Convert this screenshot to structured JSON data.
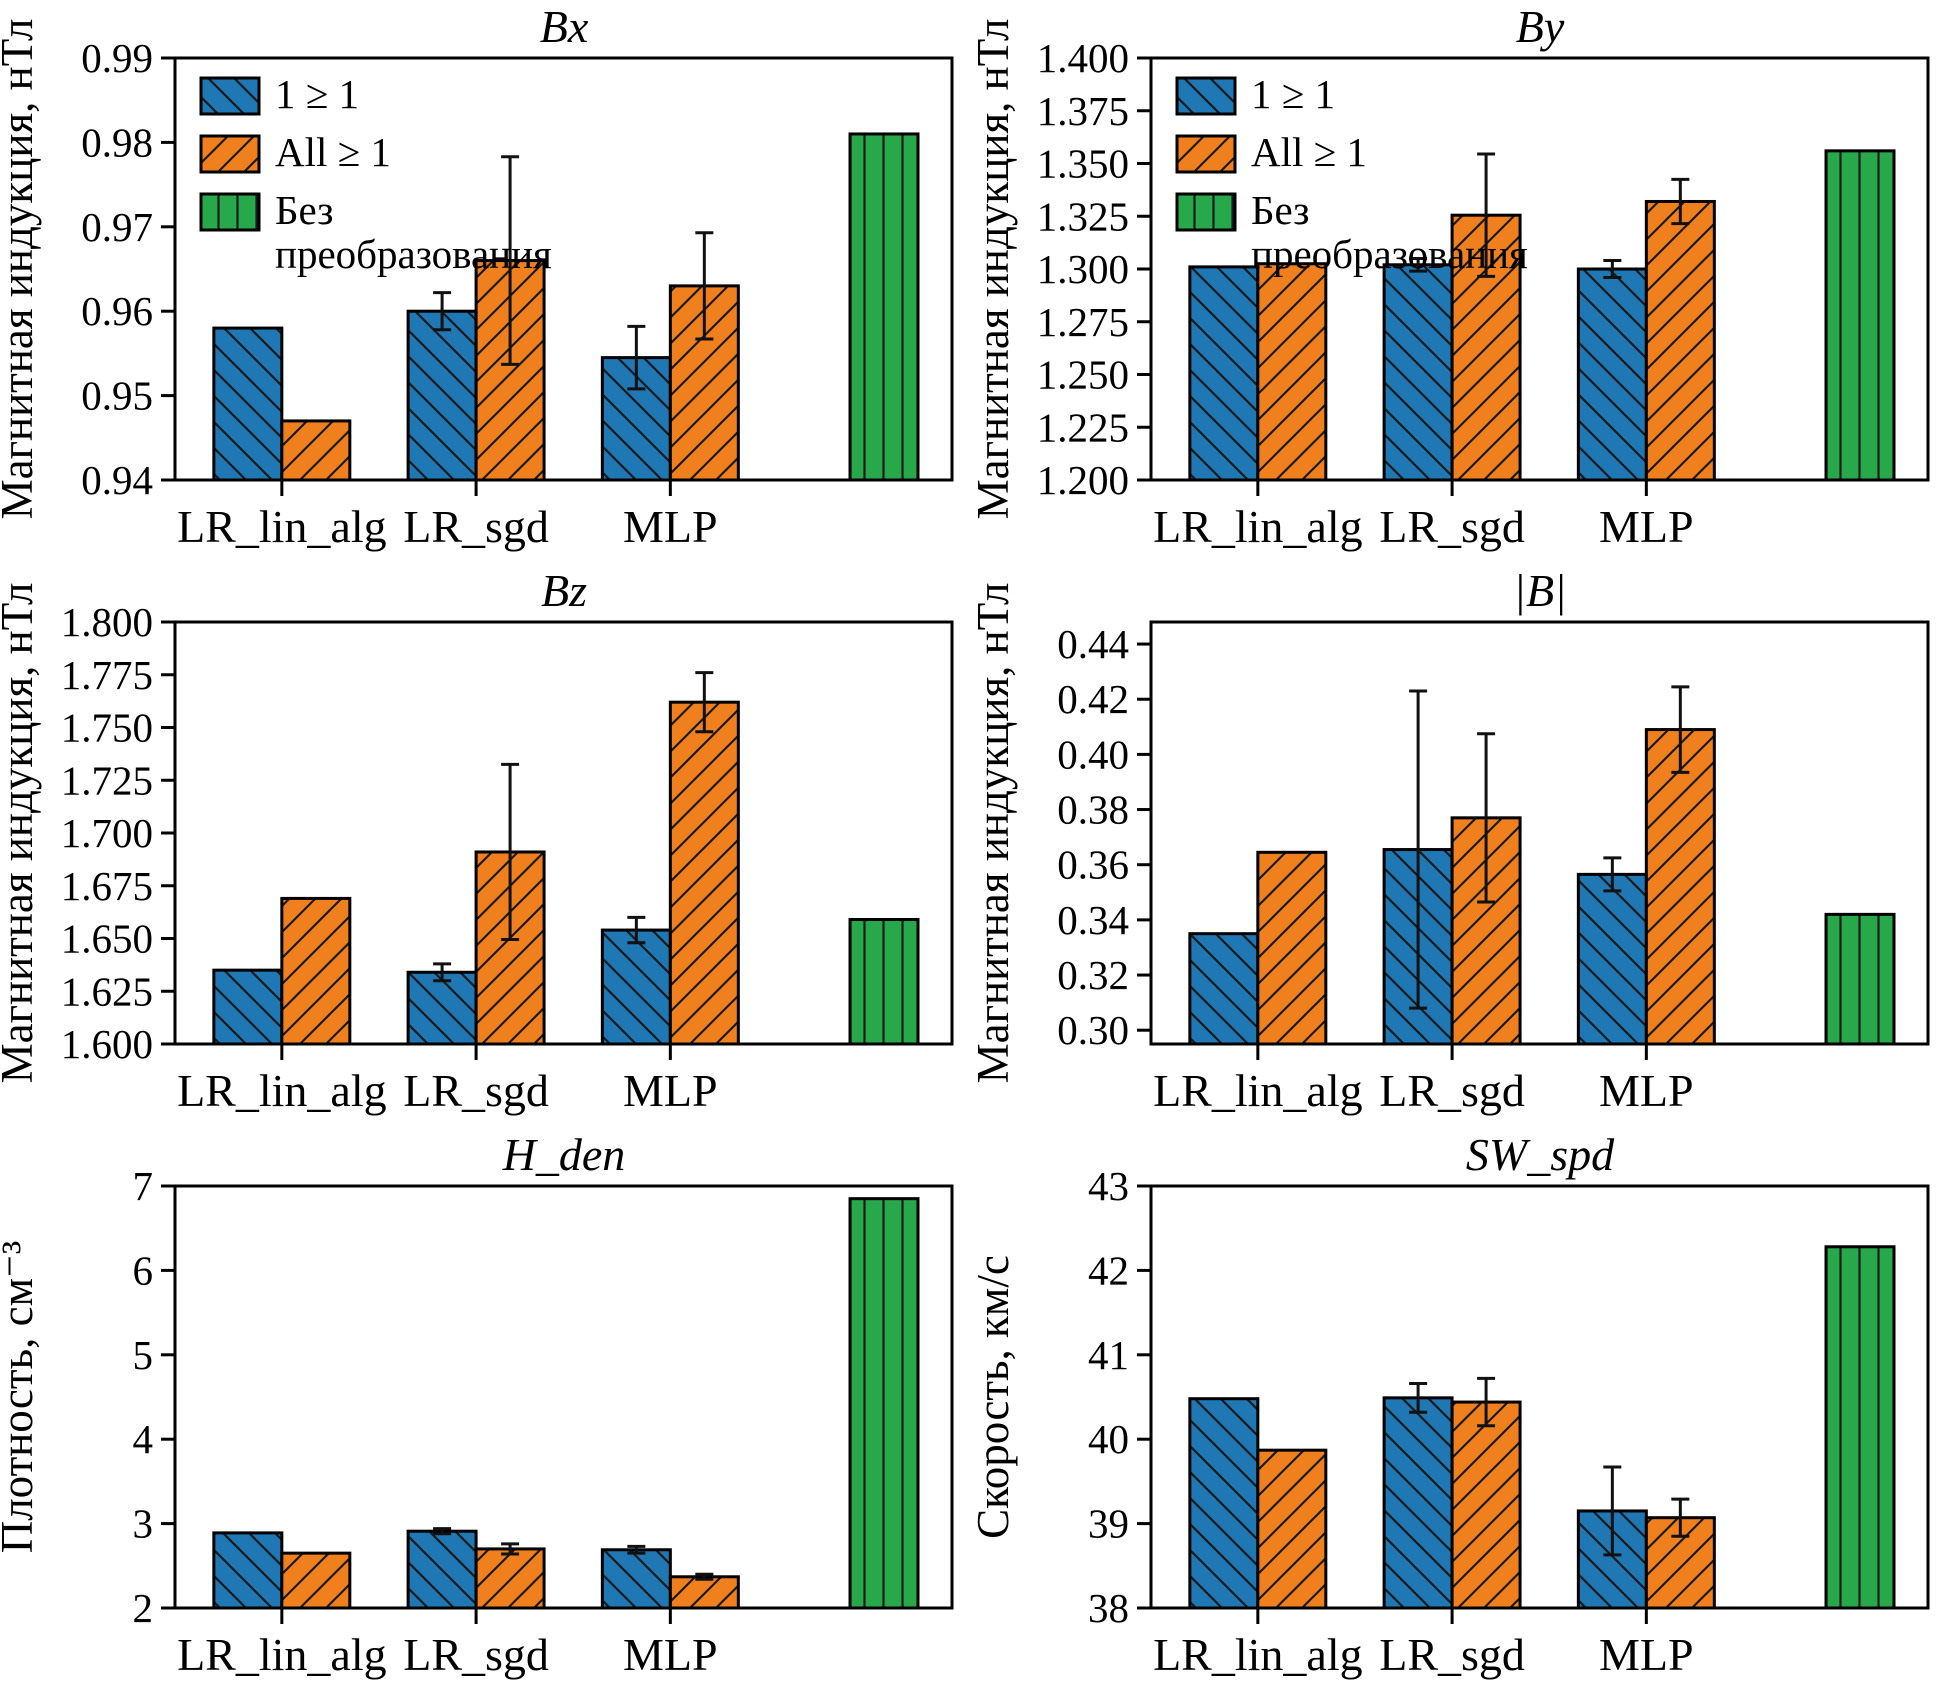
{
  "figure": {
    "language": "ru",
    "colors": {
      "series1": "#1f77b4",
      "series2": "#f07f1e",
      "baseline": "#27a84a",
      "edge": "#000000",
      "error": "#111111"
    },
    "legend_labels": [
      "1 ≥ 1",
      "All ≥ 1",
      "Без преобразования"
    ]
  },
  "chart_data": [
    {
      "type": "bar",
      "title": "Bx",
      "ylabel": "Магнитная индукция, нТл",
      "categories": [
        "LR_lin_alg",
        "LR_sgd",
        "MLP"
      ],
      "ylim": [
        0.94,
        0.99
      ],
      "yticks": {
        "values": [
          0.94,
          0.95,
          0.96,
          0.97,
          0.98,
          0.99
        ],
        "labels": [
          "0.94",
          "0.95",
          "0.96",
          "0.97",
          "0.98",
          "0.99"
        ]
      },
      "legend": true,
      "legend_position": "upper left",
      "grid": false,
      "series": [
        {
          "name": "1 ≥ 1",
          "color": "#1f77b4",
          "hatch": "backslash",
          "values": [
            0.958,
            0.96,
            0.9545
          ],
          "errors": [
            null,
            0.0022,
            0.0037
          ]
        },
        {
          "name": "All ≥ 1",
          "color": "#f07f1e",
          "hatch": "slash",
          "values": [
            0.947,
            0.966,
            0.963
          ],
          "errors": [
            null,
            0.0123,
            0.0063
          ]
        }
      ],
      "baseline": {
        "name": "Без преобразования",
        "color": "#27a84a",
        "hatch": "vertical",
        "value": 0.981
      }
    },
    {
      "type": "bar",
      "title": "By",
      "ylabel": "Магнитная индукция, нТл",
      "categories": [
        "LR_lin_alg",
        "LR_sgd",
        "MLP"
      ],
      "ylim": [
        1.2,
        1.4
      ],
      "yticks": {
        "values": [
          1.2,
          1.225,
          1.25,
          1.275,
          1.3,
          1.325,
          1.35,
          1.375,
          1.4
        ],
        "labels": [
          "1.200",
          "1.225",
          "1.250",
          "1.275",
          "1.300",
          "1.325",
          "1.350",
          "1.375",
          "1.400"
        ]
      },
      "legend": true,
      "legend_position": "upper left",
      "grid": false,
      "series": [
        {
          "name": "1 ≥ 1",
          "color": "#1f77b4",
          "hatch": "backslash",
          "values": [
            1.301,
            1.302,
            1.3
          ],
          "errors": [
            null,
            0.003,
            0.004
          ]
        },
        {
          "name": "All ≥ 1",
          "color": "#f07f1e",
          "hatch": "slash",
          "values": [
            1.3025,
            1.3255,
            1.332
          ],
          "errors": [
            null,
            0.029,
            0.0105
          ]
        }
      ],
      "baseline": {
        "name": "Без преобразования",
        "color": "#27a84a",
        "hatch": "vertical",
        "value": 1.356
      }
    },
    {
      "type": "bar",
      "title": "Bz",
      "ylabel": "Магнитная индукция, нТл",
      "categories": [
        "LR_lin_alg",
        "LR_sgd",
        "MLP"
      ],
      "ylim": [
        1.6,
        1.8
      ],
      "yticks": {
        "values": [
          1.6,
          1.625,
          1.65,
          1.675,
          1.7,
          1.725,
          1.75,
          1.775,
          1.8
        ],
        "labels": [
          "1.600",
          "1.625",
          "1.650",
          "1.675",
          "1.700",
          "1.725",
          "1.750",
          "1.775",
          "1.800"
        ]
      },
      "legend": false,
      "grid": false,
      "series": [
        {
          "name": "1 ≥ 1",
          "color": "#1f77b4",
          "hatch": "backslash",
          "values": [
            1.635,
            1.634,
            1.654
          ],
          "errors": [
            null,
            0.004,
            0.006
          ]
        },
        {
          "name": "All ≥ 1",
          "color": "#f07f1e",
          "hatch": "slash",
          "values": [
            1.669,
            1.691,
            1.762
          ],
          "errors": [
            null,
            0.0415,
            0.014
          ]
        }
      ],
      "baseline": {
        "name": "Без преобразования",
        "color": "#27a84a",
        "hatch": "vertical",
        "value": 1.659
      }
    },
    {
      "type": "bar",
      "title": "|B|",
      "ylabel": "Магнитная индукция, нТл",
      "categories": [
        "LR_lin_alg",
        "LR_sgd",
        "MLP"
      ],
      "ylim": [
        0.295,
        0.448
      ],
      "yticks": {
        "values": [
          0.3,
          0.32,
          0.34,
          0.36,
          0.38,
          0.4,
          0.42,
          0.44
        ],
        "labels": [
          "0.30",
          "0.32",
          "0.34",
          "0.36",
          "0.38",
          "0.40",
          "0.42",
          "0.44"
        ]
      },
      "legend": false,
      "grid": false,
      "series": [
        {
          "name": "1 ≥ 1",
          "color": "#1f77b4",
          "hatch": "backslash",
          "values": [
            0.335,
            0.3655,
            0.3565
          ],
          "errors": [
            null,
            0.0575,
            0.006
          ]
        },
        {
          "name": "All ≥ 1",
          "color": "#f07f1e",
          "hatch": "slash",
          "values": [
            0.3645,
            0.377,
            0.409
          ],
          "errors": [
            null,
            0.0305,
            0.0155
          ]
        }
      ],
      "baseline": {
        "name": "Без преобразования",
        "color": "#27a84a",
        "hatch": "vertical",
        "value": 0.342
      }
    },
    {
      "type": "bar",
      "title": "H_den",
      "ylabel": "Плотность, см⁻³",
      "categories": [
        "LR_lin_alg",
        "LR_sgd",
        "MLP"
      ],
      "ylim": [
        2,
        7
      ],
      "yticks": {
        "values": [
          2,
          3,
          4,
          5,
          6,
          7
        ],
        "labels": [
          "2",
          "3",
          "4",
          "5",
          "6",
          "7"
        ]
      },
      "legend": false,
      "grid": false,
      "series": [
        {
          "name": "1 ≥ 1",
          "color": "#1f77b4",
          "hatch": "backslash",
          "values": [
            2.89,
            2.91,
            2.69
          ],
          "errors": [
            null,
            0.03,
            0.04
          ]
        },
        {
          "name": "All ≥ 1",
          "color": "#f07f1e",
          "hatch": "slash",
          "values": [
            2.65,
            2.7,
            2.37
          ],
          "errors": [
            null,
            0.06,
            0.03
          ]
        }
      ],
      "baseline": {
        "name": "Без преобразования",
        "color": "#27a84a",
        "hatch": "vertical",
        "value": 6.85
      }
    },
    {
      "type": "bar",
      "title": "SW_spd",
      "ylabel": "Скорость, км/с",
      "categories": [
        "LR_lin_alg",
        "LR_sgd",
        "MLP"
      ],
      "ylim": [
        38,
        43
      ],
      "yticks": {
        "values": [
          38,
          39,
          40,
          41,
          42,
          43
        ],
        "labels": [
          "38",
          "39",
          "40",
          "41",
          "42",
          "43"
        ]
      },
      "legend": false,
      "grid": false,
      "series": [
        {
          "name": "1 ≥ 1",
          "color": "#1f77b4",
          "hatch": "backslash",
          "values": [
            40.48,
            40.49,
            39.15
          ],
          "errors": [
            null,
            0.17,
            0.52
          ]
        },
        {
          "name": "All ≥ 1",
          "color": "#f07f1e",
          "hatch": "slash",
          "values": [
            39.87,
            40.44,
            39.07
          ],
          "errors": [
            null,
            0.28,
            0.22
          ]
        }
      ],
      "baseline": {
        "name": "Без преобразования",
        "color": "#27a84a",
        "hatch": "vertical",
        "value": 42.28
      }
    }
  ]
}
